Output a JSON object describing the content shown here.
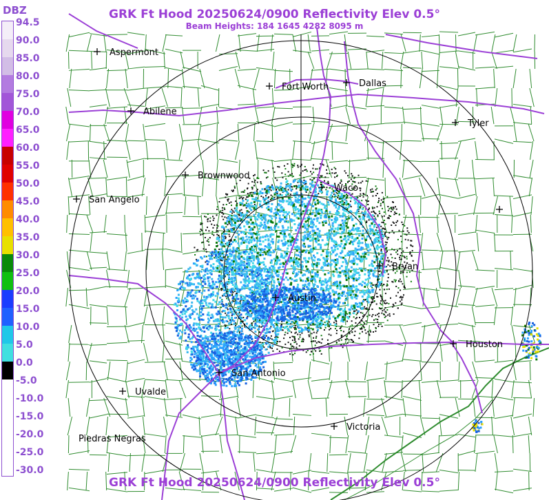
{
  "header": {
    "title": "GRK Ft Hood 20250624/0900 Reflectivity Elev 0.5°",
    "beam_heights": "Beam Heights: 184 1645 4282 8095 m"
  },
  "footer": {
    "title": "GRK Ft Hood 20250624/0900 Reflectivity Elev 0.5°"
  },
  "legend": {
    "unit": "DBZ",
    "labels": [
      "94.5",
      "90.0",
      "85.0",
      "80.0",
      "75.0",
      "70.0",
      "65.0",
      "60.0",
      "55.0",
      "50.0",
      "45.0",
      "40.0",
      "35.0",
      "30.0",
      "25.0",
      "20.0",
      "15.0",
      "10.0",
      "5.0",
      "0.0",
      "-5.0",
      "-10.0",
      "-15.0",
      "-20.0",
      "-25.0",
      "-30.0"
    ],
    "colors": [
      "#f4eef8",
      "#e6d9ee",
      "#d2bde6",
      "#b37be0",
      "#a256d8",
      "#e000e0",
      "#ff20ff",
      "#c80000",
      "#e00000",
      "#ff3000",
      "#ff8c00",
      "#ffc000",
      "#e8e000",
      "#0a8a0a",
      "#10c010",
      "#1a3cff",
      "#2060ff",
      "#20c8e8",
      "#40e0e0",
      "#000000",
      "#ffffff"
    ]
  },
  "cities": [
    {
      "name": "Aspermont"
    },
    {
      "name": "Fort Worth"
    },
    {
      "name": "Dallas"
    },
    {
      "name": "Abilene"
    },
    {
      "name": "Tyler"
    },
    {
      "name": "Brownwood"
    },
    {
      "name": "Waco"
    },
    {
      "name": "San Angelo"
    },
    {
      "name": ""
    },
    {
      "name": "Bryan"
    },
    {
      "name": "Austin"
    },
    {
      "name": "Houston"
    },
    {
      "name": "San Antonio"
    },
    {
      "name": "Uvalde"
    },
    {
      "name": "Victoria"
    },
    {
      "name": "Piedras Negras"
    }
  ],
  "map": {
    "county_line_color": "#2e8b2e",
    "highway_color": "#9b3fd6",
    "range_ring_color": "#000000",
    "echo_colors": [
      "#40d8e8",
      "#3ab8f0",
      "#2aa0ff",
      "#1860e0",
      "#0a7a0a",
      "#101010"
    ]
  }
}
